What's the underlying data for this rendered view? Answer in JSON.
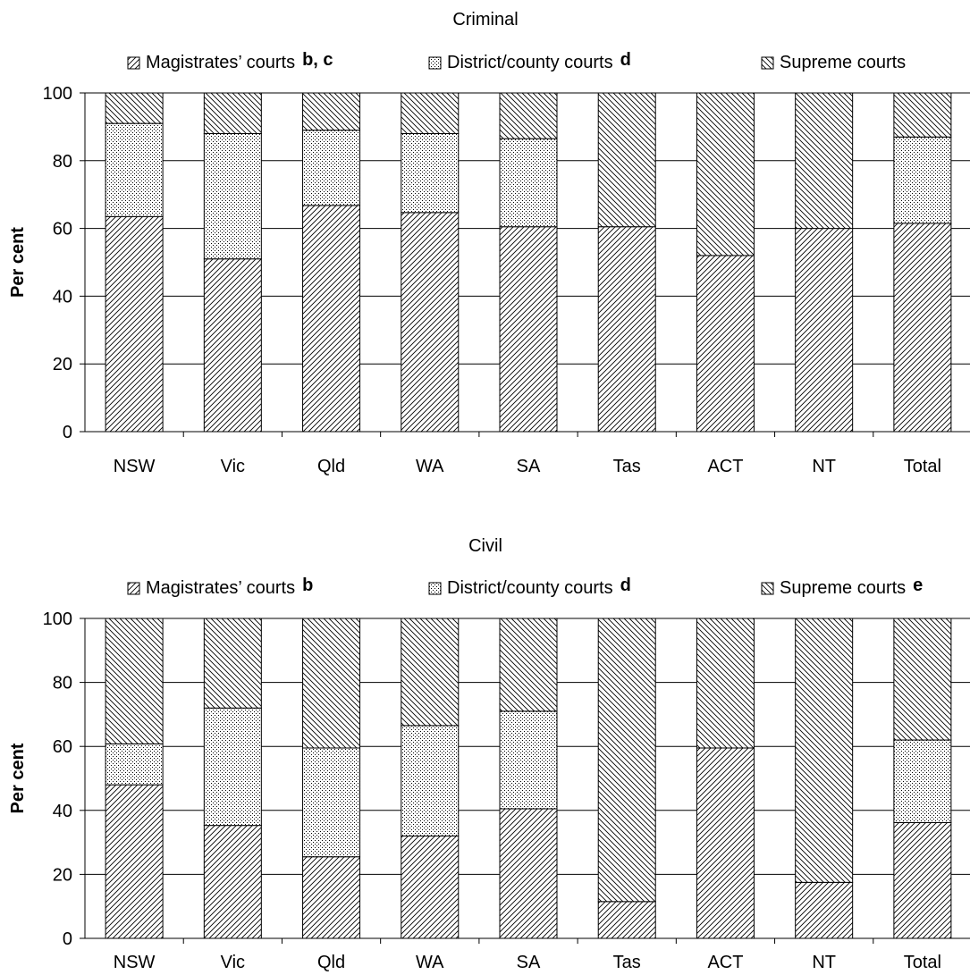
{
  "chart_data": [
    {
      "type": "bar",
      "stacked": true,
      "title": "Criminal",
      "ylabel": "Per cent",
      "xlabel": "",
      "ylim": [
        0,
        100
      ],
      "yticks": [
        "0",
        "20",
        "40",
        "60",
        "80",
        "100"
      ],
      "grid": true,
      "legend_position": "top",
      "categories": [
        "NSW",
        "Vic",
        "Qld",
        "WA",
        "SA",
        "Tas",
        "ACT",
        "NT",
        "Total"
      ],
      "series": [
        {
          "name": "Magistrates’ courts",
          "note": "b, c",
          "pattern": "diag-right",
          "values": [
            63.5,
            51,
            66.8,
            64.7,
            60.5,
            60.5,
            52,
            60,
            61.5
          ]
        },
        {
          "name": "District/county courts",
          "note": "d",
          "pattern": "dots",
          "values": [
            27.5,
            37,
            22.2,
            23.3,
            26,
            0,
            0,
            0,
            25.5
          ]
        },
        {
          "name": "Supreme courts",
          "note": "",
          "pattern": "diag-left",
          "values": [
            9,
            12,
            11,
            12,
            13.5,
            39.5,
            48,
            40,
            13
          ]
        }
      ]
    },
    {
      "type": "bar",
      "stacked": true,
      "title": "Civil",
      "ylabel": "Per cent",
      "xlabel": "",
      "ylim": [
        0,
        100
      ],
      "yticks": [
        "0",
        "20",
        "40",
        "60",
        "80",
        "100"
      ],
      "grid": true,
      "legend_position": "top",
      "categories": [
        "NSW",
        "Vic",
        "Qld",
        "WA",
        "SA",
        "Tas",
        "ACT",
        "NT",
        "Total"
      ],
      "series": [
        {
          "name": "Magistrates’ courts",
          "note": "b",
          "pattern": "diag-right",
          "values": [
            48,
            35.3,
            25.5,
            32,
            40.5,
            11.5,
            59.5,
            17.5,
            36.2
          ]
        },
        {
          "name": "District/county courts",
          "note": "d",
          "pattern": "dots",
          "values": [
            12.8,
            36.7,
            34,
            34.5,
            30.5,
            0,
            0,
            0,
            25.8
          ]
        },
        {
          "name": "Supreme courts",
          "note": "e",
          "pattern": "diag-left",
          "values": [
            39.2,
            28,
            40.5,
            33.5,
            29,
            88.5,
            40.5,
            82.5,
            38
          ]
        }
      ]
    }
  ]
}
